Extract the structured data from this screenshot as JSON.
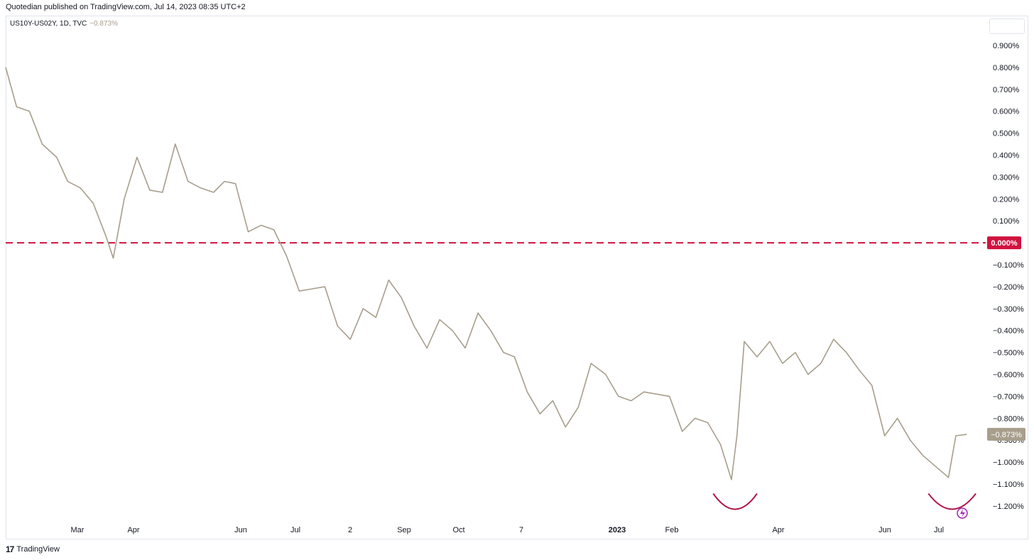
{
  "header": {
    "published": "Quotedian published on TradingView.com, Jul 14, 2023 08:35 UTC+2"
  },
  "legend": {
    "symbol": "US10Y-US02Y, 1D, TVC",
    "change": "−0.873%"
  },
  "footer": {
    "brand": "TradingView",
    "logo_glyph": "17"
  },
  "colors": {
    "line": "#a89e8c",
    "zero_line": "#d1123f",
    "arc": "#b0124a",
    "last_badge": "#a89e8c",
    "zero_badge": "#d1123f"
  },
  "chart_data": {
    "type": "line",
    "title": "US10Y-US02Y, 1D, TVC",
    "series": [
      {
        "name": "US10Y-US02Y",
        "x": [
          "2022-02-01",
          "2022-02-07",
          "2022-02-14",
          "2022-02-21",
          "2022-03-01",
          "2022-03-07",
          "2022-03-14",
          "2022-03-21",
          "2022-03-28",
          "2022-04-01",
          "2022-04-07",
          "2022-04-14",
          "2022-04-21",
          "2022-04-28",
          "2022-05-05",
          "2022-05-12",
          "2022-05-19",
          "2022-05-26",
          "2022-06-01",
          "2022-06-07",
          "2022-06-14",
          "2022-06-21",
          "2022-06-28",
          "2022-07-05",
          "2022-07-12",
          "2022-07-19",
          "2022-07-26",
          "2022-08-02",
          "2022-08-09",
          "2022-08-16",
          "2022-08-23",
          "2022-08-30",
          "2022-09-06",
          "2022-09-13",
          "2022-09-20",
          "2022-09-27",
          "2022-10-04",
          "2022-10-11",
          "2022-10-18",
          "2022-10-25",
          "2022-11-01",
          "2022-11-07",
          "2022-11-14",
          "2022-11-21",
          "2022-11-28",
          "2022-12-05",
          "2022-12-12",
          "2022-12-19",
          "2022-12-27",
          "2023-01-03",
          "2023-01-10",
          "2023-01-17",
          "2023-01-24",
          "2023-01-31",
          "2023-02-07",
          "2023-02-14",
          "2023-02-21",
          "2023-02-28",
          "2023-03-06",
          "2023-03-09",
          "2023-03-13",
          "2023-03-20",
          "2023-03-27",
          "2023-04-03",
          "2023-04-10",
          "2023-04-17",
          "2023-04-24",
          "2023-05-01",
          "2023-05-08",
          "2023-05-15",
          "2023-05-22",
          "2023-05-29",
          "2023-06-05",
          "2023-06-12",
          "2023-06-19",
          "2023-06-26",
          "2023-07-03",
          "2023-07-07",
          "2023-07-13"
        ],
        "y": [
          0.8,
          0.62,
          0.6,
          0.45,
          0.39,
          0.28,
          0.25,
          0.18,
          0.03,
          -0.07,
          0.2,
          0.39,
          0.24,
          0.23,
          0.45,
          0.28,
          0.25,
          0.23,
          0.28,
          0.27,
          0.05,
          0.08,
          0.06,
          -0.06,
          -0.22,
          -0.21,
          -0.2,
          -0.38,
          -0.44,
          -0.3,
          -0.34,
          -0.17,
          -0.25,
          -0.38,
          -0.48,
          -0.35,
          -0.4,
          -0.48,
          -0.32,
          -0.4,
          -0.5,
          -0.52,
          -0.68,
          -0.78,
          -0.72,
          -0.84,
          -0.75,
          -0.55,
          -0.6,
          -0.7,
          -0.72,
          -0.68,
          -0.69,
          -0.7,
          -0.86,
          -0.8,
          -0.82,
          -0.92,
          -1.08,
          -0.88,
          -0.45,
          -0.52,
          -0.45,
          -0.55,
          -0.5,
          -0.6,
          -0.55,
          -0.44,
          -0.5,
          -0.58,
          -0.65,
          -0.88,
          -0.8,
          -0.9,
          -0.97,
          -1.02,
          -1.07,
          -0.88,
          -0.873
        ]
      }
    ],
    "x_ticks": [
      "Mar",
      "Apr",
      "Jun",
      "Jul",
      "2",
      "Sep",
      "Oct",
      "7",
      "2023",
      "Feb",
      "Apr",
      "Jun",
      "Jul"
    ],
    "y_ticks": [
      "0.900%",
      "0.800%",
      "0.700%",
      "0.600%",
      "0.500%",
      "0.400%",
      "0.300%",
      "0.200%",
      "0.100%",
      "0.000%",
      "−0.100%",
      "−0.200%",
      "−0.300%",
      "−0.400%",
      "−0.500%",
      "−0.600%",
      "−0.700%",
      "−0.800%",
      "−0.900%",
      "−1.000%",
      "−1.100%",
      "−1.200%"
    ],
    "ylim": [
      -1.25,
      0.95
    ],
    "xlim": [
      "2022-02-01",
      "2023-08-15"
    ],
    "reference_line": {
      "value": 0.0,
      "label": "0.000%",
      "style": "dashed"
    },
    "last_value": {
      "value": -0.873,
      "label": "−0.873%"
    },
    "annotations": [
      {
        "type": "arc",
        "x_start": "2023-02-24",
        "x_end": "2023-03-20",
        "y": -1.15
      },
      {
        "type": "arc",
        "x_start": "2023-06-22",
        "x_end": "2023-07-18",
        "y": -1.15
      }
    ],
    "grid": false,
    "legend_position": "top-left"
  }
}
